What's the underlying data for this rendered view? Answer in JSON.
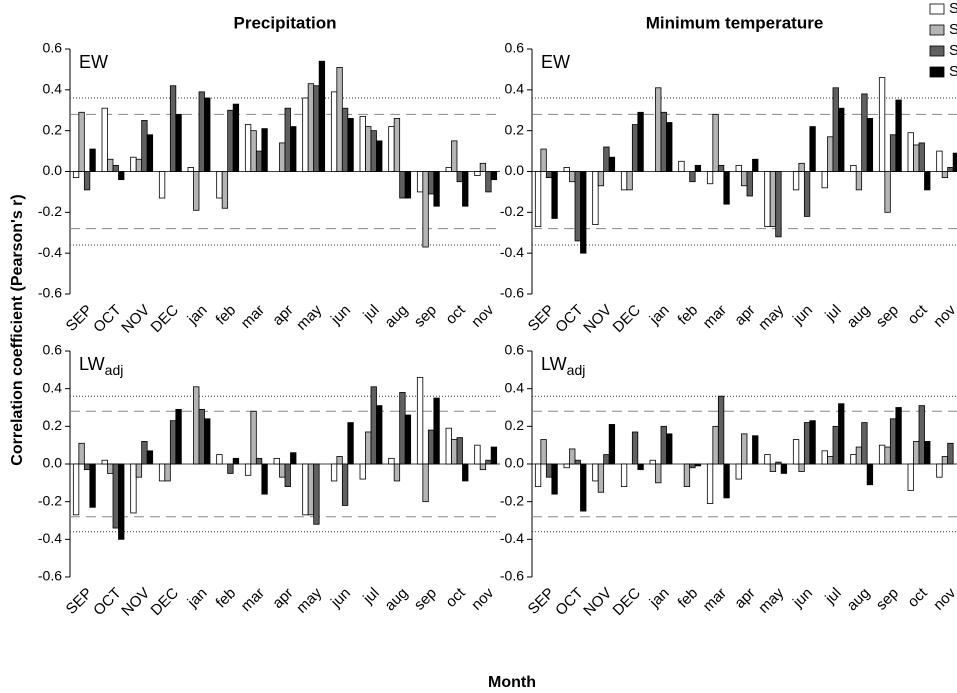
{
  "ylabel": "Correlation coefficient (Pearson's r)",
  "xlabel": "Month",
  "chart_data": [
    {
      "type": "bar",
      "title": "Precipitation",
      "label": "EW",
      "categories": [
        "SEP",
        "OCT",
        "NOV",
        "DEC",
        "jan",
        "feb",
        "mar",
        "apr",
        "may",
        "jun",
        "jul",
        "aug",
        "sep",
        "oct",
        "nov"
      ],
      "series": [
        {
          "name": "S",
          "color": "#ffffff",
          "values": [
            -0.03,
            0.31,
            0.07,
            -0.13,
            0.02,
            -0.13,
            0.23,
            0.0,
            0.36,
            0.39,
            0.27,
            0.22,
            -0.1,
            0.02,
            -0.02
          ]
        },
        {
          "name": "S",
          "color": "#b4b4b4",
          "values": [
            0.29,
            0.06,
            0.06,
            0.0,
            -0.19,
            -0.18,
            0.2,
            0.14,
            0.43,
            0.51,
            0.22,
            0.26,
            -0.37,
            0.15,
            0.04
          ]
        },
        {
          "name": "S",
          "color": "#606060",
          "values": [
            -0.09,
            0.03,
            0.25,
            0.42,
            0.39,
            0.3,
            0.1,
            0.31,
            0.42,
            0.31,
            0.2,
            -0.13,
            -0.11,
            -0.05,
            -0.1
          ]
        },
        {
          "name": "S",
          "color": "#000000",
          "values": [
            0.11,
            -0.04,
            0.18,
            0.28,
            0.36,
            0.33,
            0.21,
            0.22,
            0.54,
            0.26,
            0.15,
            -0.13,
            -0.17,
            -0.17,
            -0.04
          ]
        }
      ],
      "ylim": [
        -0.6,
        0.6
      ],
      "yticks": [
        {
          "value": 0.6,
          "label": "0.6"
        },
        {
          "value": 0.4,
          "label": "0.4"
        },
        {
          "value": 0.2,
          "label": "0.2"
        },
        {
          "value": 0,
          "label": "0.0"
        },
        {
          "value": -0.2,
          "label": "-0.2"
        },
        {
          "value": -0.4,
          "label": "-0.4"
        },
        {
          "value": -0.6,
          "label": "-0.6"
        }
      ],
      "ref_dotted": [
        0.36,
        -0.36
      ],
      "ref_dashed": [
        0.28,
        -0.28
      ]
    },
    {
      "type": "bar",
      "title": "Minimum temperature",
      "label": "EW",
      "categories": [
        "SEP",
        "OCT",
        "NOV",
        "DEC",
        "jan",
        "feb",
        "mar",
        "apr",
        "may",
        "jun",
        "jul",
        "aug",
        "sep",
        "oct",
        "nov"
      ],
      "series": [
        {
          "color": "#ffffff",
          "values": [
            -0.27,
            0.02,
            -0.26,
            -0.09,
            0.0,
            0.05,
            -0.06,
            0.03,
            -0.27,
            -0.09,
            -0.08,
            0.03,
            0.46,
            0.19,
            0.1
          ]
        },
        {
          "color": "#b4b4b4",
          "values": [
            0.11,
            -0.05,
            -0.07,
            -0.09,
            0.41,
            0.0,
            0.28,
            -0.07,
            -0.27,
            0.04,
            0.17,
            -0.09,
            -0.2,
            0.13,
            -0.03
          ]
        },
        {
          "color": "#606060",
          "values": [
            -0.03,
            -0.34,
            0.12,
            0.23,
            0.29,
            -0.05,
            0.03,
            -0.12,
            -0.32,
            -0.22,
            0.41,
            0.38,
            0.18,
            0.14,
            0.02
          ]
        },
        {
          "color": "#000000",
          "values": [
            -0.23,
            -0.4,
            0.07,
            0.29,
            0.24,
            0.03,
            -0.16,
            0.06,
            0.0,
            0.22,
            0.31,
            0.26,
            0.35,
            -0.09,
            0.09
          ]
        }
      ],
      "ylim": [
        -0.6,
        0.6
      ],
      "yticks": [
        {
          "value": 0.6,
          "label": "0.6"
        },
        {
          "value": 0.4,
          "label": "0.4"
        },
        {
          "value": 0.2,
          "label": "0.2"
        },
        {
          "value": 0,
          "label": "0.0"
        },
        {
          "value": -0.2,
          "label": "-0.2"
        },
        {
          "value": -0.4,
          "label": "-0.4"
        },
        {
          "value": -0.6,
          "label": "-0.6"
        }
      ],
      "ref_dotted": [
        0.36,
        -0.36
      ],
      "ref_dashed": [
        0.28,
        -0.28
      ]
    },
    {
      "type": "bar",
      "label": "LW",
      "label_subscript": "adj",
      "categories": [
        "SEP",
        "OCT",
        "NOV",
        "DEC",
        "jan",
        "feb",
        "mar",
        "apr",
        "may",
        "jun",
        "jul",
        "aug",
        "sep",
        "oct",
        "nov"
      ],
      "series": [
        {
          "color": "#ffffff",
          "values": [
            -0.27,
            0.02,
            -0.26,
            -0.09,
            0.0,
            0.05,
            -0.06,
            0.03,
            -0.27,
            -0.09,
            -0.08,
            0.03,
            0.46,
            0.19,
            0.1
          ]
        },
        {
          "color": "#b4b4b4",
          "values": [
            0.11,
            -0.05,
            -0.07,
            -0.09,
            0.41,
            0.0,
            0.28,
            -0.07,
            -0.27,
            0.04,
            0.17,
            -0.09,
            -0.2,
            0.13,
            -0.03
          ]
        },
        {
          "color": "#606060",
          "values": [
            -0.03,
            -0.34,
            0.12,
            0.23,
            0.29,
            -0.05,
            0.03,
            -0.12,
            -0.32,
            -0.22,
            0.41,
            0.38,
            0.18,
            0.14,
            0.02
          ]
        },
        {
          "color": "#000000",
          "values": [
            -0.23,
            -0.4,
            0.07,
            0.29,
            0.24,
            0.03,
            -0.16,
            0.06,
            0.0,
            0.22,
            0.31,
            0.26,
            0.35,
            -0.09,
            0.09
          ]
        }
      ],
      "ylim": [
        -0.6,
        0.6
      ],
      "yticks": [
        {
          "value": 0.6,
          "label": "0.6"
        },
        {
          "value": 0.4,
          "label": "0.4"
        },
        {
          "value": 0.2,
          "label": "0.2"
        },
        {
          "value": 0,
          "label": "0.0"
        },
        {
          "value": -0.2,
          "label": "-0.2"
        },
        {
          "value": -0.4,
          "label": "-0.4"
        },
        {
          "value": -0.6,
          "label": "-0.6"
        }
      ],
      "ref_dotted": [
        0.36,
        -0.36
      ],
      "ref_dashed": [
        0.28,
        -0.28
      ]
    },
    {
      "type": "bar",
      "label": "LW",
      "label_subscript": "adj",
      "categories": [
        "SEP",
        "OCT",
        "NOV",
        "DEC",
        "jan",
        "feb",
        "mar",
        "apr",
        "may",
        "jun",
        "jul",
        "aug",
        "sep",
        "oct",
        "nov"
      ],
      "series": [
        {
          "color": "#ffffff",
          "values": [
            -0.12,
            -0.02,
            -0.09,
            -0.12,
            0.02,
            0.0,
            -0.21,
            -0.08,
            0.05,
            0.13,
            0.07,
            0.05,
            0.1,
            -0.14,
            -0.07
          ]
        },
        {
          "color": "#b4b4b4",
          "values": [
            0.13,
            0.08,
            -0.15,
            0.0,
            -0.1,
            -0.12,
            0.2,
            0.16,
            -0.04,
            -0.04,
            0.04,
            0.09,
            0.09,
            0.12,
            0.04
          ]
        },
        {
          "color": "#606060",
          "values": [
            -0.07,
            0.02,
            0.05,
            0.17,
            0.2,
            -0.02,
            0.36,
            0.0,
            0.01,
            0.22,
            0.2,
            0.22,
            0.24,
            0.31,
            0.11
          ]
        },
        {
          "color": "#000000",
          "values": [
            -0.16,
            -0.25,
            0.21,
            -0.03,
            0.16,
            -0.01,
            -0.18,
            0.15,
            -0.05,
            0.23,
            0.32,
            -0.11,
            0.3,
            0.12,
            0.0
          ]
        }
      ],
      "ylim": [
        -0.6,
        0.6
      ],
      "yticks": [
        {
          "value": 0.6,
          "label": "0.6"
        },
        {
          "value": 0.4,
          "label": "0.4"
        },
        {
          "value": 0.2,
          "label": "0.2"
        },
        {
          "value": 0,
          "label": "0.0"
        },
        {
          "value": -0.2,
          "label": "-0.2"
        },
        {
          "value": -0.4,
          "label": "-0.4"
        },
        {
          "value": -0.6,
          "label": "-0.6"
        }
      ],
      "ref_dotted": [
        0.36,
        -0.36
      ],
      "ref_dashed": [
        0.28,
        -0.28
      ]
    }
  ]
}
